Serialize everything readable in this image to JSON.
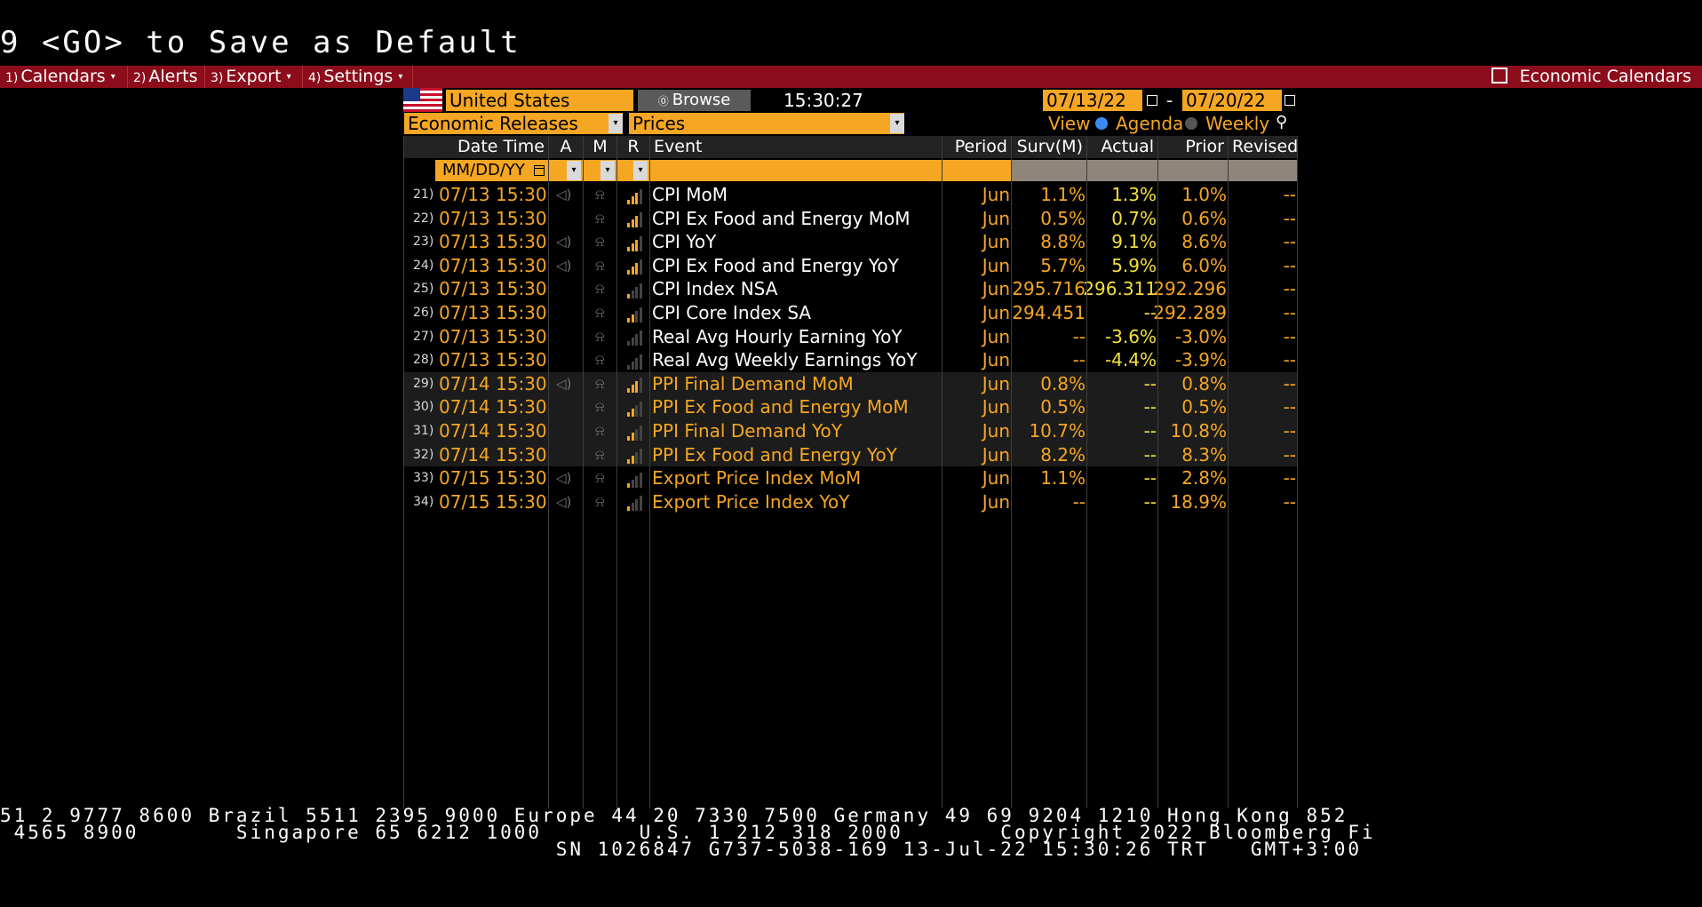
{
  "command_line": "9 <GO> to Save as Default",
  "menu": {
    "items": [
      {
        "num": "1)",
        "label": "Calendars",
        "caret": true
      },
      {
        "num": "2)",
        "label": "Alerts",
        "caret": false
      },
      {
        "num": "3)",
        "label": "Export",
        "caret": true
      },
      {
        "num": "4)",
        "label": "Settings",
        "caret": true
      }
    ],
    "right_label": "Economic Calendars"
  },
  "controls": {
    "country": "United States",
    "browse_label": "Browse",
    "time": "15:30:27",
    "date_from": "07/13/22",
    "date_sep": "-",
    "date_to": "07/20/22",
    "release_type": "Economic Releases",
    "category": "Prices",
    "view_label": "View",
    "view_agenda": "Agenda",
    "view_weekly": "Weekly",
    "date_filter_placeholder": "MM/DD/YY"
  },
  "columns": {
    "date_time": "Date Time",
    "a": "A",
    "m": "M",
    "r": "R",
    "event": "Event",
    "period": "Period",
    "survey": "Surv(M)",
    "actual": "Actual",
    "prior": "Prior",
    "revised": "Revised"
  },
  "rows": [
    {
      "n": "21)",
      "dt": "07/13 15:30",
      "audio": true,
      "r": 3,
      "event": "CPI MoM",
      "period": "Jun",
      "surv": "1.1%",
      "actual": "1.3%",
      "prior": "1.0%",
      "revised": "--"
    },
    {
      "n": "22)",
      "dt": "07/13 15:30",
      "audio": false,
      "r": 3,
      "event": "CPI Ex Food and Energy MoM",
      "period": "Jun",
      "surv": "0.5%",
      "actual": "0.7%",
      "prior": "0.6%",
      "revised": "--"
    },
    {
      "n": "23)",
      "dt": "07/13 15:30",
      "audio": true,
      "r": 3,
      "event": "CPI YoY",
      "period": "Jun",
      "surv": "8.8%",
      "actual": "9.1%",
      "prior": "8.6%",
      "revised": "--"
    },
    {
      "n": "24)",
      "dt": "07/13 15:30",
      "audio": true,
      "r": 3,
      "event": "CPI Ex Food and Energy YoY",
      "period": "Jun",
      "surv": "5.7%",
      "actual": "5.9%",
      "prior": "6.0%",
      "revised": "--"
    },
    {
      "n": "25)",
      "dt": "07/13 15:30",
      "audio": false,
      "r": 1,
      "event": "CPI Index NSA",
      "period": "Jun",
      "surv": "295.716",
      "actual": "296.311",
      "prior": "292.296",
      "revised": "--"
    },
    {
      "n": "26)",
      "dt": "07/13 15:30",
      "audio": false,
      "r": 2,
      "event": "CPI Core Index SA",
      "period": "Jun",
      "surv": "294.451",
      "actual": "--",
      "prior": "292.289",
      "revised": "--"
    },
    {
      "n": "27)",
      "dt": "07/13 15:30",
      "audio": false,
      "r": 0,
      "event": "Real Avg Hourly Earning YoY",
      "period": "Jun",
      "surv": "--",
      "actual": "-3.6%",
      "prior": "-3.0%",
      "revised": "--"
    },
    {
      "n": "28)",
      "dt": "07/13 15:30",
      "audio": false,
      "r": 0,
      "event": "Real Avg Weekly Earnings YoY",
      "period": "Jun",
      "surv": "--",
      "actual": "-4.4%",
      "prior": "-3.9%",
      "revised": "--"
    },
    {
      "n": "29)",
      "dt": "07/14 15:30",
      "audio": true,
      "r": 3,
      "event": "PPI Final Demand MoM",
      "period": "Jun",
      "surv": "0.8%",
      "actual": "--",
      "prior": "0.8%",
      "revised": "--"
    },
    {
      "n": "30)",
      "dt": "07/14 15:30",
      "audio": false,
      "r": 2,
      "event": "PPI Ex Food and Energy MoM",
      "period": "Jun",
      "surv": "0.5%",
      "actual": "--",
      "prior": "0.5%",
      "revised": "--"
    },
    {
      "n": "31)",
      "dt": "07/14 15:30",
      "audio": false,
      "r": 2,
      "event": "PPI Final Demand YoY",
      "period": "Jun",
      "surv": "10.7%",
      "actual": "--",
      "prior": "10.8%",
      "revised": "--"
    },
    {
      "n": "32)",
      "dt": "07/14 15:30",
      "audio": false,
      "r": 2,
      "event": "PPI Ex Food and Energy YoY",
      "period": "Jun",
      "surv": "8.2%",
      "actual": "--",
      "prior": "8.3%",
      "revised": "--"
    },
    {
      "n": "33)",
      "dt": "07/15 15:30",
      "audio": true,
      "r": 1,
      "event": "Export Price Index MoM",
      "period": "Jun",
      "surv": "1.1%",
      "actual": "--",
      "prior": "2.8%",
      "revised": "--"
    },
    {
      "n": "34)",
      "dt": "07/15 15:30",
      "audio": true,
      "r": 1,
      "event": "Export Price Index YoY",
      "period": "Jun",
      "surv": "--",
      "actual": "--",
      "prior": "18.9%",
      "revised": "--"
    }
  ],
  "footer": {
    "line1": "51 2 9777 8600 Brazil 5511 2395 9000 Europe 44 20 7330 7500 Germany 49 69 9204 1210 Hong Kong 852",
    "line2": " 4565 8900       Singapore 65 6212 1000       U.S. 1 212 318 2000       Copyright 2022 Bloomberg Fi",
    "line3": "                                        SN 1026847 G737-5038-169 13-Jul-22 15:30:26 TRT   GMT+3:00"
  },
  "colors": {
    "accent_orange": "#f5a623",
    "actual_yellow": "#f4e03c",
    "menubar_red": "#8b0d1c"
  }
}
